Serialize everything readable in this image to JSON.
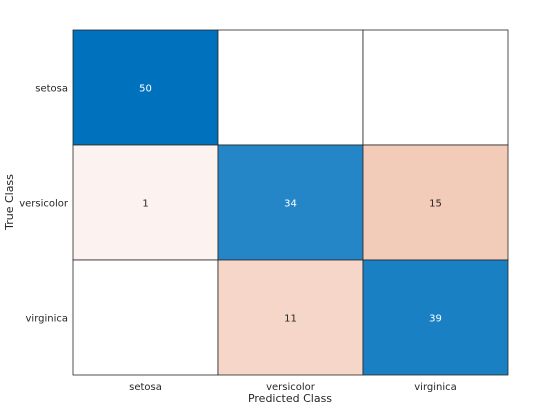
{
  "chart_data": {
    "type": "heatmap",
    "title": "",
    "xlabel": "Predicted Class",
    "ylabel": "True Class",
    "x_categories": [
      "setosa",
      "versicolor",
      "virginica"
    ],
    "y_categories": [
      "setosa",
      "versicolor",
      "virginica"
    ],
    "values": [
      [
        50,
        null,
        null
      ],
      [
        1,
        34,
        15
      ],
      [
        null,
        11,
        39
      ]
    ],
    "colors": {
      "correct_max": "#0072BD",
      "error_max": "#D95319",
      "empty": "#FFFFFF",
      "text_dark": "#262626",
      "text_light": "#FFFFFF",
      "gridline": "#262626"
    },
    "grid": true,
    "legend": "none"
  }
}
